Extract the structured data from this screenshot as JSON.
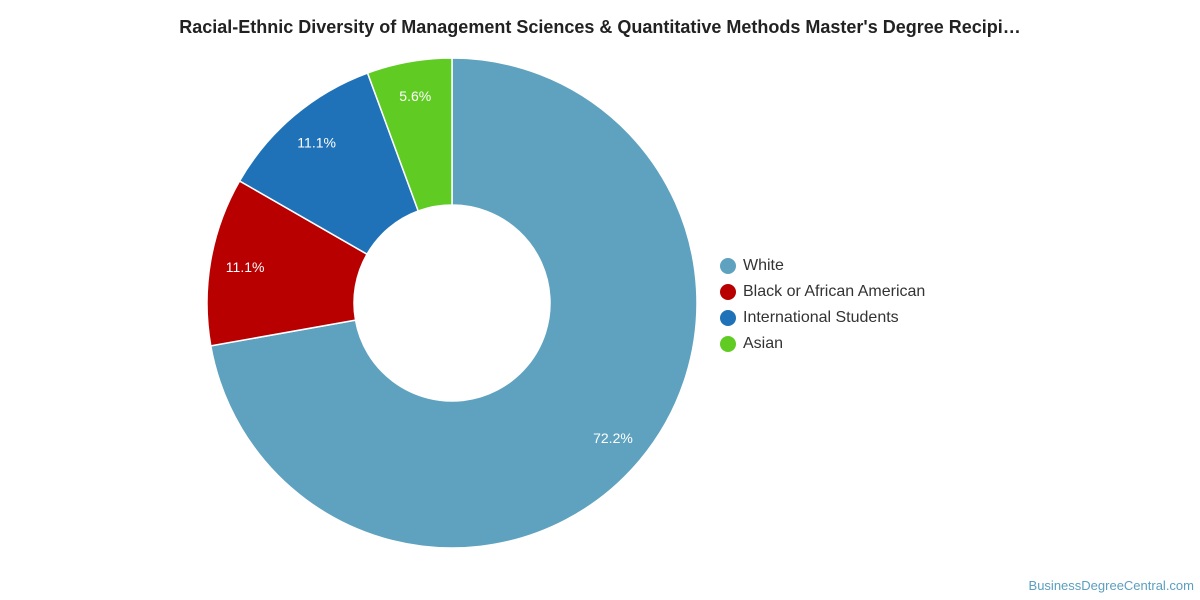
{
  "chart_data": {
    "type": "pie",
    "variant": "donut",
    "title": "Racial-Ethnic Diversity of Management Sciences & Quantitative Methods Master's Degree Recipi…",
    "categories": [
      "White",
      "Black or African American",
      "International Students",
      "Asian"
    ],
    "values": [
      72.2,
      11.1,
      11.1,
      5.6
    ],
    "labels": [
      "72.2%",
      "11.1%",
      "11.1%",
      "5.6%"
    ],
    "colors": [
      "#5ea2bf",
      "#b90000",
      "#1f72b8",
      "#60cc23"
    ],
    "legend_position": "right",
    "start": "top",
    "direction": "clockwise"
  },
  "footer": {
    "credit": "BusinessDegreeCentral.com"
  }
}
